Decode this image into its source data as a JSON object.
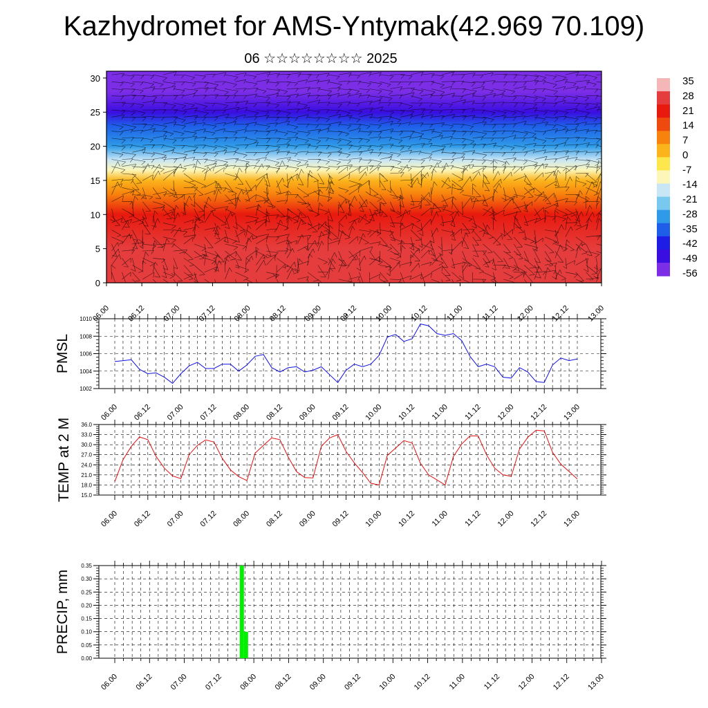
{
  "title": "Kazhydromet for AMS-Yntymak(42.969 70.109)",
  "subtitle": "06 ☆☆☆☆☆☆☆☆ 2025",
  "chart_data": [
    {
      "type": "heatmap",
      "y_ticks": [
        "0",
        "5",
        "10",
        "15",
        "20",
        "25",
        "30"
      ],
      "x_ticks": [
        "06.00",
        "06.12",
        "07.00",
        "07.12",
        "08.00",
        "08.12",
        "09.00",
        "09.12",
        "10.00",
        "10.12",
        "11.00",
        "11.12",
        "12.00",
        "12.12",
        "13.00"
      ],
      "ylim": [
        0,
        31
      ],
      "colorbar_labels": [
        "35",
        "28",
        "21",
        "14",
        "7",
        "0",
        "-7",
        "-14",
        "-21",
        "-28",
        "-35",
        "-42",
        "-49",
        "-56"
      ],
      "colorbar_colors": [
        "#f4b6b6",
        "#e53d3d",
        "#e8190e",
        "#ef4a0e",
        "#f7820d",
        "#fbb41c",
        "#fde74c",
        "#fcf6b8",
        "#c9e6f6",
        "#79c8f0",
        "#2f9be8",
        "#1e5ee8",
        "#1d1de6",
        "#3a0de0",
        "#7b2ee6"
      ],
      "profile": {
        "heights": [
          0,
          5,
          10,
          13,
          15,
          16.5,
          18,
          20,
          23,
          25,
          28,
          31
        ],
        "temps": [
          33,
          28,
          21,
          12,
          2,
          -10,
          -20,
          -30,
          -42,
          -52,
          -58,
          -62
        ]
      }
    },
    {
      "type": "line",
      "ylabel": "PMSL",
      "y_ticks": [
        "1002",
        "1004",
        "1006",
        "1008",
        "1010"
      ],
      "ylim": [
        1002,
        1010
      ],
      "x_ticks": [
        "06.00",
        "06.12",
        "07.00",
        "07.12",
        "08.00",
        "08.12",
        "09.00",
        "09.12",
        "10.00",
        "10.12",
        "11.00",
        "11.12",
        "12.00",
        "12.12",
        "13.00"
      ],
      "series": [
        {
          "color": "#1010e0",
          "values": [
            1005.1,
            1005.2,
            1005.3,
            1004.2,
            1003.7,
            1003.8,
            1003.3,
            1002.6,
            1003.7,
            1004.6,
            1005.0,
            1004.3,
            1004.3,
            1004.8,
            1004.8,
            1004.0,
            1004.7,
            1005.7,
            1005.9,
            1004.4,
            1003.9,
            1004.4,
            1004.5,
            1003.9,
            1004.1,
            1004.5,
            1003.6,
            1002.7,
            1004.1,
            1004.8,
            1004.5,
            1004.8,
            1005.8,
            1007.9,
            1008.2,
            1007.4,
            1007.7,
            1009.4,
            1009.2,
            1008.3,
            1008.1,
            1008.3,
            1007.5,
            1005.7,
            1004.5,
            1004.8,
            1004.5,
            1003.3,
            1003.2,
            1004.4,
            1003.9,
            1002.8,
            1002.7,
            1004.7,
            1005.5,
            1005.2,
            1005.4
          ]
        }
      ]
    },
    {
      "type": "line",
      "ylabel": "TEMP at 2 M",
      "y_ticks": [
        "15.0",
        "18.0",
        "21.0",
        "24.0",
        "27.0",
        "30.0",
        "33.0",
        "36.0"
      ],
      "ylim": [
        15,
        36
      ],
      "x_ticks": [
        "06.00",
        "06.12",
        "07.00",
        "07.12",
        "08.00",
        "08.12",
        "09.00",
        "09.12",
        "10.00",
        "10.12",
        "11.00",
        "11.12",
        "12.00",
        "12.12",
        "13.00"
      ],
      "series": [
        {
          "color": "#e01010",
          "values": [
            19.0,
            25.5,
            29.5,
            32.3,
            31.5,
            26.5,
            23.0,
            20.7,
            19.9,
            27.0,
            29.8,
            31.4,
            30.8,
            26.0,
            22.5,
            20.5,
            19.3,
            27.5,
            29.8,
            32.0,
            31.5,
            26.3,
            22.0,
            20.2,
            20.1,
            29.5,
            32.0,
            33.0,
            28.0,
            24.6,
            21.7,
            18.5,
            18.0,
            26.8,
            29.0,
            31.2,
            30.5,
            24.5,
            21.0,
            19.5,
            18.0,
            26.5,
            30.2,
            32.6,
            32.6,
            27.0,
            23.0,
            21.0,
            20.6,
            28.7,
            32.2,
            34.3,
            34.1,
            27.7,
            24.2,
            22.0,
            19.8
          ]
        }
      ]
    },
    {
      "type": "bar",
      "ylabel": "PRECIP, mm",
      "y_ticks": [
        "0.00",
        "0.05",
        "0.10",
        "0.15",
        "0.20",
        "0.25",
        "0.30",
        "0.35"
      ],
      "ylim": [
        0,
        0.35
      ],
      "x_ticks": [
        "06.00",
        "06.12",
        "07.00",
        "07.12",
        "08.00",
        "08.12",
        "09.00",
        "09.12",
        "10.00",
        "10.12",
        "11.00",
        "11.12",
        "12.00",
        "12.12",
        "13.00"
      ],
      "color": "#00f000",
      "bars": [
        {
          "x": 3.595,
          "width": 0.12,
          "value": 0.35
        },
        {
          "x": 3.715,
          "width": 0.12,
          "value": 0.1
        }
      ]
    }
  ]
}
